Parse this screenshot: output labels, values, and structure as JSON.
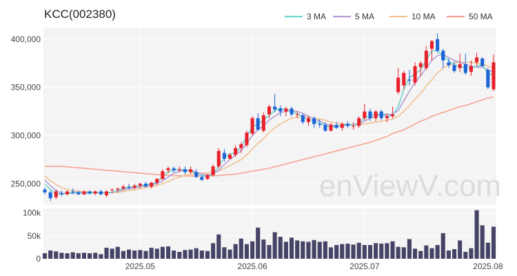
{
  "chart_data": [
    {
      "type": "candlestick",
      "title": "KCC(002380)",
      "ylim": [
        228000,
        412000
      ],
      "yticks": [
        250000,
        300000,
        350000,
        400000
      ],
      "ytick_labels": [
        "250,000",
        "300,000",
        "350,000",
        "400,000"
      ],
      "xtick_labels": [
        {
          "label": "2025.05",
          "index": 17
        },
        {
          "label": "2025.06",
          "index": 37
        },
        {
          "label": "2025.07",
          "index": 57
        },
        {
          "label": "2025.08",
          "index": 79
        }
      ],
      "grid": true,
      "legend": "top-right",
      "colors": {
        "up": "#e8202a",
        "down": "#1a64d6",
        "ma3": "#6ed3cf",
        "ma5": "#b59bd6",
        "ma10": "#f0c090",
        "ma50": "#f4a390"
      },
      "series": [
        {
          "name": "3 MA",
          "color": "#6ed3cf"
        },
        {
          "name": "5 MA",
          "color": "#b59bd6"
        },
        {
          "name": "10 MA",
          "color": "#f0c090"
        },
        {
          "name": "50 MA",
          "color": "#f4a390"
        }
      ],
      "ohlc": [
        [
          244000,
          246000,
          239000,
          241000
        ],
        [
          241000,
          243000,
          232000,
          235000
        ],
        [
          236000,
          244000,
          234000,
          242000
        ],
        [
          240000,
          243000,
          237000,
          239000
        ],
        [
          239000,
          243000,
          238000,
          242000
        ],
        [
          242000,
          245000,
          239000,
          241000
        ],
        [
          241000,
          243000,
          238000,
          239000
        ],
        [
          239000,
          243000,
          238000,
          242000
        ],
        [
          242000,
          243000,
          239000,
          240000
        ],
        [
          240000,
          243000,
          238000,
          242000
        ],
        [
          242000,
          244000,
          238000,
          239000
        ],
        [
          238000,
          243000,
          236000,
          242000
        ],
        [
          244000,
          245000,
          240000,
          244000
        ],
        [
          244000,
          246000,
          241000,
          245000
        ],
        [
          245000,
          249000,
          243000,
          247000
        ],
        [
          247000,
          250000,
          244000,
          246000
        ],
        [
          246000,
          250000,
          244000,
          248000
        ],
        [
          248000,
          251000,
          245000,
          250000
        ],
        [
          250000,
          252000,
          246000,
          247000
        ],
        [
          247000,
          252000,
          245000,
          251000
        ],
        [
          251000,
          256000,
          249000,
          255000
        ],
        [
          255000,
          265000,
          254000,
          263000
        ],
        [
          264000,
          268000,
          261000,
          266000
        ],
        [
          266000,
          268000,
          262000,
          264000
        ],
        [
          264000,
          268000,
          262000,
          265000
        ],
        [
          265000,
          268000,
          260000,
          262000
        ],
        [
          262000,
          268000,
          260000,
          265000
        ],
        [
          262000,
          265000,
          256000,
          257000
        ],
        [
          257000,
          259000,
          253000,
          254000
        ],
        [
          255000,
          260000,
          254000,
          259000
        ],
        [
          259000,
          270000,
          258000,
          268000
        ],
        [
          268000,
          287000,
          266000,
          284000
        ],
        [
          282000,
          286000,
          273000,
          276000
        ],
        [
          276000,
          282000,
          275000,
          280000
        ],
        [
          280000,
          290000,
          278000,
          287000
        ],
        [
          287000,
          293000,
          282000,
          291000
        ],
        [
          290000,
          305000,
          288000,
          303000
        ],
        [
          302000,
          320000,
          300000,
          318000
        ],
        [
          318000,
          323000,
          305000,
          306000
        ],
        [
          305000,
          324000,
          303000,
          321000
        ],
        [
          322000,
          332000,
          318000,
          330000
        ],
        [
          330000,
          343000,
          324000,
          327000
        ],
        [
          328000,
          331000,
          320000,
          325000
        ],
        [
          325000,
          330000,
          320000,
          328000
        ],
        [
          328000,
          330000,
          320000,
          322000
        ],
        [
          322000,
          325000,
          318000,
          322000
        ],
        [
          321000,
          323000,
          312000,
          314000
        ],
        [
          314000,
          320000,
          310000,
          318000
        ],
        [
          318000,
          320000,
          308000,
          312000
        ],
        [
          312000,
          317000,
          308000,
          311000
        ],
        [
          311000,
          314000,
          304000,
          305000
        ],
        [
          305000,
          313000,
          304000,
          311000
        ],
        [
          311000,
          314000,
          307000,
          308000
        ],
        [
          308000,
          314000,
          305000,
          312000
        ],
        [
          312000,
          315000,
          308000,
          310000
        ],
        [
          310000,
          314000,
          306000,
          310000
        ],
        [
          310000,
          320000,
          308000,
          318000
        ],
        [
          318000,
          333000,
          316000,
          325000
        ],
        [
          325000,
          328000,
          315000,
          318000
        ],
        [
          318000,
          326000,
          315000,
          325000
        ],
        [
          325000,
          327000,
          316000,
          318000
        ],
        [
          318000,
          323000,
          314000,
          320000
        ],
        [
          320000,
          330000,
          318000,
          322000
        ],
        [
          345000,
          370000,
          343000,
          360000
        ],
        [
          352000,
          367000,
          348000,
          365000
        ],
        [
          358000,
          368000,
          352000,
          357000
        ],
        [
          355000,
          376000,
          352000,
          372000
        ],
        [
          371000,
          377000,
          362000,
          375000
        ],
        [
          370000,
          393000,
          368000,
          388000
        ],
        [
          390000,
          399000,
          378000,
          398000
        ],
        [
          400000,
          406000,
          386000,
          388000
        ],
        [
          388000,
          390000,
          370000,
          378000
        ],
        [
          376000,
          380000,
          370000,
          373000
        ],
        [
          373000,
          377000,
          365000,
          367000
        ],
        [
          370000,
          385000,
          366000,
          374000
        ],
        [
          374000,
          385000,
          363000,
          365000
        ],
        [
          366000,
          378000,
          362000,
          372000
        ],
        [
          376000,
          386000,
          372000,
          381000
        ],
        [
          380000,
          381000,
          372000,
          372000
        ],
        [
          368000,
          370000,
          348000,
          350000
        ],
        [
          348000,
          384000,
          346000,
          376000
        ]
      ],
      "ma3": [
        250000,
        244000,
        240000,
        239000,
        240000,
        241000,
        241000,
        240000,
        240000,
        241000,
        241000,
        241000,
        241000,
        243000,
        245000,
        246000,
        247000,
        248000,
        249000,
        250000,
        251000,
        258000,
        262000,
        264000,
        265000,
        264000,
        263000,
        261000,
        258000,
        258000,
        260000,
        268000,
        277000,
        281000,
        282000,
        288000,
        299000,
        309000,
        312000,
        316000,
        321000,
        326000,
        328000,
        327000,
        325000,
        323000,
        319000,
        317000,
        315000,
        313000,
        310000,
        309000,
        309000,
        311000,
        312000,
        311000,
        313000,
        318000,
        321000,
        322000,
        322000,
        320000,
        321000,
        330000,
        348000,
        360000,
        364000,
        368000,
        378000,
        388000,
        388000,
        382000,
        378000,
        373000,
        372000,
        370000,
        370000,
        372000,
        373000,
        365000,
        362000
      ],
      "ma5": [
        254000,
        248000,
        243000,
        240000,
        240000,
        240000,
        241000,
        241000,
        241000,
        240000,
        241000,
        241000,
        241000,
        242000,
        244000,
        245000,
        246000,
        247000,
        248000,
        249000,
        250000,
        253000,
        257000,
        261000,
        263000,
        264000,
        264000,
        262000,
        260000,
        259000,
        260000,
        264000,
        270000,
        275000,
        280000,
        284000,
        292000,
        300000,
        306000,
        310000,
        316000,
        320000,
        324000,
        325000,
        326000,
        325000,
        323000,
        320000,
        317000,
        315000,
        312000,
        311000,
        310000,
        310000,
        311000,
        311000,
        312000,
        315000,
        318000,
        320000,
        322000,
        322000,
        322000,
        326000,
        336000,
        346000,
        355000,
        362000,
        370000,
        378000,
        383000,
        384000,
        381000,
        378000,
        376000,
        374000,
        372000,
        371000,
        371000,
        368000,
        366000
      ],
      "ma10": [
        258000,
        253000,
        249000,
        246000,
        244000,
        243000,
        242000,
        242000,
        241000,
        241000,
        241000,
        241000,
        241000,
        241000,
        242000,
        243000,
        244000,
        245000,
        246000,
        247000,
        248000,
        250000,
        252000,
        255000,
        257000,
        259000,
        260000,
        261000,
        261000,
        261000,
        262000,
        263000,
        266000,
        269000,
        272000,
        275000,
        280000,
        286000,
        292000,
        297000,
        303000,
        308000,
        312000,
        315000,
        318000,
        319000,
        320000,
        319000,
        318000,
        317000,
        316000,
        314000,
        313000,
        312000,
        312000,
        311000,
        311000,
        312000,
        313000,
        314000,
        315000,
        316000,
        317000,
        320000,
        325000,
        331000,
        338000,
        344000,
        351000,
        358000,
        365000,
        370000,
        373000,
        375000,
        376000,
        376000,
        376000,
        375000,
        374000,
        372000,
        370000
      ],
      "ma50": [
        268000,
        268000,
        268000,
        268000,
        267500,
        267000,
        266500,
        266000,
        265500,
        265000,
        264500,
        264000,
        263500,
        263000,
        262500,
        262000,
        261500,
        261000,
        260500,
        260000,
        259500,
        259000,
        258800,
        258500,
        258300,
        258100,
        258000,
        258000,
        258000,
        258000,
        258200,
        258500,
        259000,
        259500,
        260000,
        261000,
        262000,
        263000,
        264000,
        265000,
        266000,
        267500,
        269000,
        270500,
        272000,
        273500,
        275000,
        276500,
        278000,
        279500,
        281000,
        282500,
        284000,
        285500,
        287000,
        288500,
        290000,
        291500,
        293000,
        295000,
        297000,
        299000,
        302000,
        304000,
        306000,
        309000,
        312000,
        315000,
        317000,
        320000,
        322000,
        324000,
        326000,
        328000,
        330000,
        331000,
        333000,
        335000,
        337000,
        339000,
        340000
      ]
    },
    {
      "type": "bar",
      "title": "",
      "ylim": [
        0,
        110000
      ],
      "yticks": [
        0,
        50000,
        100000
      ],
      "ytick_labels": [
        "0",
        "50k",
        "100k"
      ],
      "color": "#464466",
      "values": [
        12000,
        18000,
        16000,
        13000,
        12000,
        14000,
        12000,
        13000,
        12000,
        13000,
        10000,
        24000,
        22000,
        26000,
        17000,
        20000,
        18000,
        19000,
        17000,
        24000,
        22000,
        26000,
        27000,
        18000,
        15000,
        19000,
        20000,
        23000,
        18000,
        17000,
        34000,
        53000,
        25000,
        20000,
        32000,
        44000,
        32000,
        38000,
        68000,
        42000,
        30000,
        58000,
        48000,
        37000,
        46000,
        40000,
        38000,
        37000,
        41000,
        37000,
        38000,
        25000,
        30000,
        32000,
        33000,
        31000,
        35000,
        30000,
        30000,
        34000,
        33000,
        34000,
        38000,
        26000,
        25000,
        43000,
        22000,
        17000,
        29000,
        23000,
        30000,
        56000,
        18000,
        21000,
        40000,
        15000,
        23000,
        106000,
        73000,
        35000,
        70000
      ],
      "volume_bars_note": ""
    }
  ],
  "legend": [
    "3 MA",
    "5 MA",
    "10 MA",
    "50 MA"
  ],
  "watermark": "enViewV.com"
}
